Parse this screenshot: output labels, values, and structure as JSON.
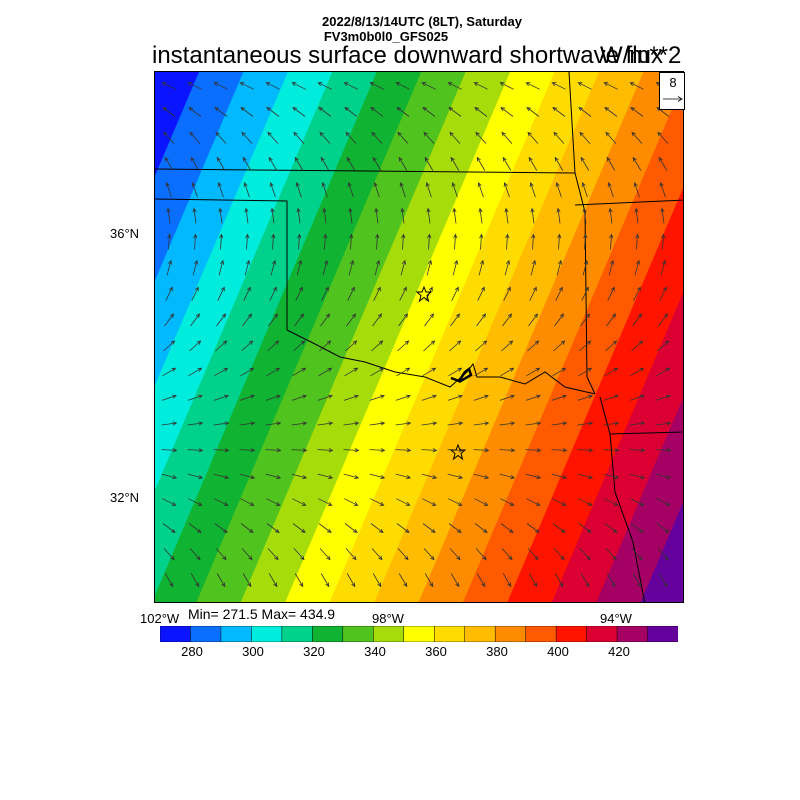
{
  "header": {
    "datetime": "2022/8/13/14UTC (8LT), Saturday",
    "model": "FV3m0b0l0_GFS025",
    "title": "instantaneous surface downward shortwave flux",
    "units": "W/m**2"
  },
  "map": {
    "lat_labels": [
      "36°N",
      "32°N"
    ],
    "lon_labels": [
      "102°W",
      "98°W",
      "94°W"
    ],
    "minmax": "Min= 271.5 Max= 434.9",
    "vector_reference": {
      "value": "8",
      "arrow_icon": "right-arrow-icon"
    },
    "markers": [
      "star-icon",
      "star-icon"
    ]
  },
  "colorbar": {
    "labels": [
      "280",
      "300",
      "320",
      "340",
      "360",
      "380",
      "400",
      "420"
    ],
    "colors": [
      "#0a14ff",
      "#0a6eff",
      "#00b9ff",
      "#00ecdc",
      "#00d28c",
      "#10b432",
      "#50c31e",
      "#a6dc0a",
      "#ffff00",
      "#ffdc00",
      "#ffbc00",
      "#ff8c00",
      "#ff5a00",
      "#ff1400",
      "#dc0032",
      "#a50064",
      "#64009b"
    ]
  }
}
